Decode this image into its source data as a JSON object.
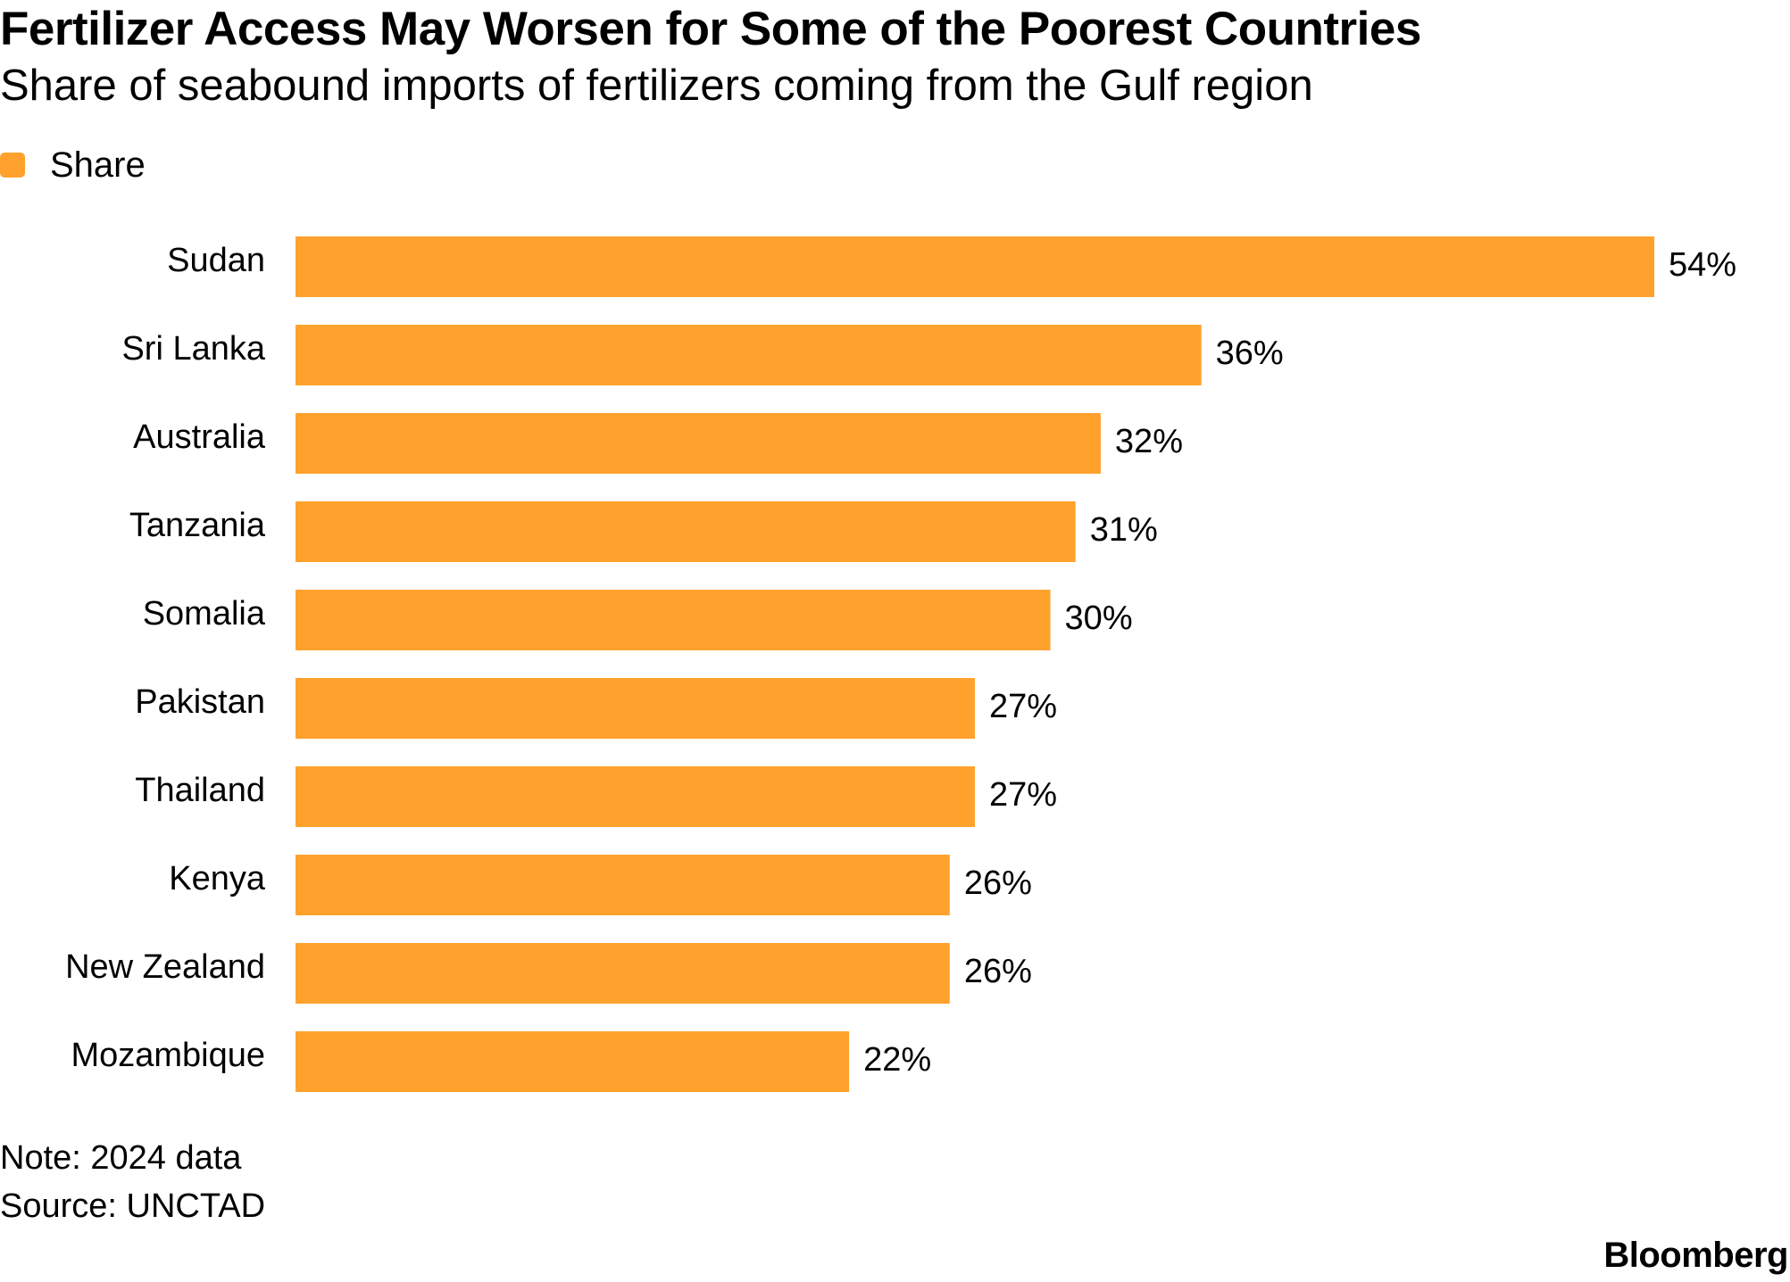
{
  "chart_data": {
    "type": "bar",
    "orientation": "horizontal",
    "title": "Fertilizer Access May Worsen for Some of the Poorest Countries",
    "subtitle": "Share of seabound imports of fertilizers coming from the Gulf region",
    "legend": {
      "label": "Share",
      "placement": "top-left"
    },
    "categories": [
      "Sudan",
      "Sri Lanka",
      "Australia",
      "Tanzania",
      "Somalia",
      "Pakistan",
      "Thailand",
      "Kenya",
      "New Zealand",
      "Mozambique"
    ],
    "series": [
      {
        "name": "Share",
        "values": [
          54,
          36,
          32,
          31,
          30,
          27,
          27,
          26,
          26,
          22
        ],
        "labels": [
          "54%",
          "36%",
          "32%",
          "31%",
          "30%",
          "27%",
          "27%",
          "26%",
          "26%",
          "22%"
        ]
      }
    ],
    "xlim": [
      0,
      54
    ],
    "grid": false,
    "xlabel": "",
    "ylabel": ""
  },
  "footer": {
    "note": "Note: 2024 data",
    "source": "Source: UNCTAD",
    "brand": "Bloomberg"
  },
  "colors": {
    "bar": "#FFA22D",
    "text": "#000000",
    "background": "#FFFFFF"
  }
}
